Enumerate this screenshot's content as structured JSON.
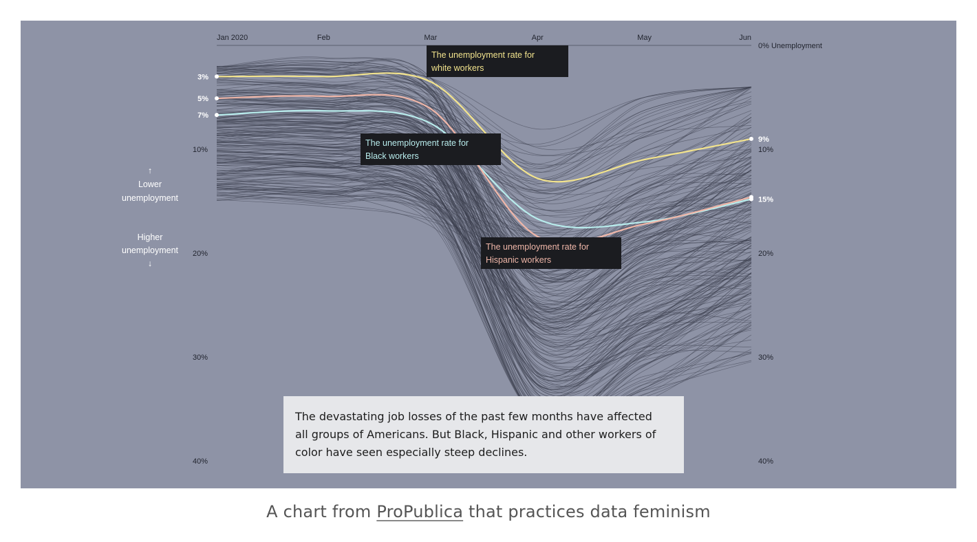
{
  "caption": {
    "prefix": "A chart from ",
    "link_text": "ProPublica",
    "suffix": " that practices data feminism"
  },
  "colors": {
    "background": "#8e93a6",
    "background_lines": "#3a3e4c",
    "white_workers": "#f2e38d",
    "black_workers": "#b8ecec",
    "hispanic_workers": "#efb6a8",
    "annotation_box": "#1b1c20"
  },
  "chart_data": {
    "type": "line",
    "x": [
      "Jan 2020",
      "Feb",
      "Mar",
      "Apr",
      "May",
      "Jun"
    ],
    "y_ticks": [
      "0% Unemployment",
      "10%",
      "20%",
      "30%",
      "40%"
    ],
    "ylim": [
      0,
      40
    ],
    "y_inverted": true,
    "legend": "none",
    "grid": false,
    "y_axis_note_up": [
      "↑",
      "Lower",
      "unemployment"
    ],
    "y_axis_note_down": [
      "Higher",
      "unemployment",
      "↓"
    ],
    "series": [
      {
        "name": "The unemployment rate for white workers",
        "values": [
          3,
          3,
          3.5,
          12.8,
          11,
          9
        ],
        "start_label": "3%",
        "end_label": "9%",
        "color": "#f2e38d"
      },
      {
        "name": "The unemployment rate for Black workers",
        "values": [
          6.7,
          6.3,
          7.5,
          16.7,
          17,
          14.8
        ],
        "start_label": "7%",
        "end_label": "15%",
        "color": "#b8ecec"
      },
      {
        "name": "The unemployment rate for Hispanic workers",
        "values": [
          5.1,
          4.9,
          6.1,
          18.4,
          17.2,
          14.6
        ],
        "start_label": "5%",
        "end_label": "",
        "color": "#efb6a8"
      }
    ],
    "annotations": [
      {
        "line1": "The unemployment rate for",
        "line2": "white workers"
      },
      {
        "line1": "The unemployment rate for",
        "line2": "Black workers"
      },
      {
        "line1": "The unemployment rate for",
        "line2": "Hispanic workers"
      }
    ],
    "summary": [
      "The devastating job losses of the past few months have affected",
      "all groups of Americans. But Black, Hispanic and other workers of",
      "color have seen especially steep declines."
    ]
  }
}
